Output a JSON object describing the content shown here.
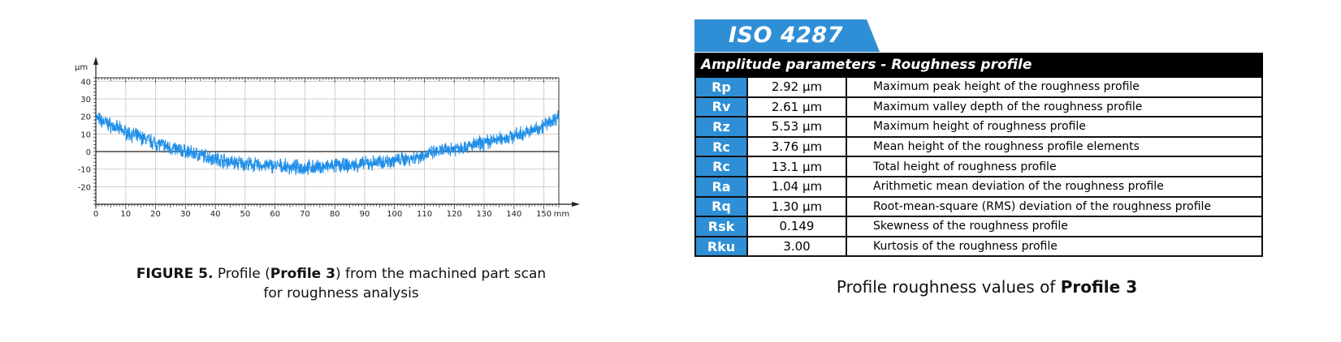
{
  "figure": {
    "caption_label": "FIGURE 5.",
    "caption_pre": " Profile (",
    "caption_bold": "Profile 3",
    "caption_post": ") from the machined part scan",
    "caption_line2": "for roughness analysis"
  },
  "chart_data": {
    "type": "line",
    "yunit": "µm",
    "xunit": "mm",
    "xlim": [
      0,
      155
    ],
    "ylim": [
      -30,
      42
    ],
    "yticks": [
      40,
      30,
      20,
      10,
      0,
      -10,
      -20
    ],
    "xticks": [
      0,
      10,
      20,
      30,
      40,
      50,
      60,
      70,
      80,
      90,
      100,
      110,
      120,
      130,
      140,
      150
    ],
    "grid": true,
    "series_color": "#1f8ee8",
    "series": [
      {
        "x": [
          0,
          5,
          10,
          15,
          20,
          25,
          30,
          35,
          40,
          45,
          50,
          55,
          60,
          65,
          70,
          75,
          80,
          85,
          90,
          95,
          100,
          105,
          110,
          115,
          120,
          125,
          130,
          135,
          140,
          145,
          150,
          155
        ],
        "values": [
          19,
          15,
          11,
          8,
          5,
          2,
          0,
          -2,
          -4,
          -6,
          -7,
          -8,
          -8,
          -9,
          -9,
          -9,
          -8,
          -8,
          -7,
          -6,
          -5,
          -4,
          -2,
          0,
          2,
          3,
          5,
          7,
          9,
          11,
          15,
          20
        ]
      }
    ]
  },
  "iso": {
    "title": "ISO 4287"
  },
  "table": {
    "heading": "Amplitude parameters - Roughness profile",
    "rows": [
      {
        "symbol": "Rp",
        "value": "2.92 µm",
        "description": "Maximum peak height of the roughness profile"
      },
      {
        "symbol": "Rv",
        "value": "2.61 µm",
        "description": "Maximum valley depth of the roughness profile"
      },
      {
        "symbol": "Rz",
        "value": "5.53 µm",
        "description": "Maximum height of roughness profile"
      },
      {
        "symbol": "Rc",
        "value": "3.76 µm",
        "description": "Mean height of the roughness profile elements"
      },
      {
        "symbol": "Rc",
        "value": "13.1 µm",
        "description": "Total height of roughness profile"
      },
      {
        "symbol": "Ra",
        "value": "1.04 µm",
        "description": "Arithmetic mean deviation of the roughness profile"
      },
      {
        "symbol": "Rq",
        "value": "1.30 µm",
        "description": "Root-mean-square (RMS) deviation of the roughness profile"
      },
      {
        "symbol": "Rsk",
        "value": "0.149",
        "description": "Skewness of the roughness profile"
      },
      {
        "symbol": "Rku",
        "value": "3.00",
        "description": "Kurtosis of the roughness profile"
      }
    ],
    "caption_pre": "Profile roughness values of ",
    "caption_bold": "Profile 3"
  },
  "colors": {
    "accent": "#2f8fd6",
    "heading_bg": "#000000"
  }
}
